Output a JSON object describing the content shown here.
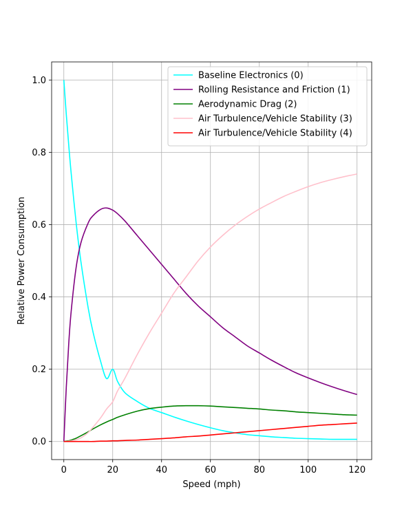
{
  "chart_data": {
    "type": "line",
    "title": "",
    "xlabel": "Speed (mph)",
    "ylabel": "Relative Power Consumption",
    "xlim": [
      -5,
      126
    ],
    "ylim": [
      -0.05,
      1.05
    ],
    "xticks": [
      0,
      20,
      40,
      60,
      80,
      100,
      120
    ],
    "xtick_labels": [
      "0",
      "20",
      "40",
      "60",
      "80",
      "100",
      "120"
    ],
    "yticks": [
      0.0,
      0.2,
      0.4,
      0.6,
      0.8,
      1.0
    ],
    "ytick_labels": [
      "0.0",
      "0.2",
      "0.4",
      "0.6",
      "0.8",
      "1.0"
    ],
    "grid": true,
    "legend_position": "upper-right",
    "x": [
      0,
      1,
      2,
      3,
      5,
      7,
      10,
      12,
      15,
      17.5,
      20,
      22,
      25,
      30,
      35,
      40,
      45,
      50,
      55,
      60,
      65,
      70,
      75,
      80,
      85,
      90,
      95,
      100,
      105,
      110,
      115,
      120
    ],
    "series": [
      {
        "name": "Baseline Electronics (0)",
        "color": "#00ffff",
        "values": [
          1.0,
          0.905,
          0.82,
          0.742,
          0.607,
          0.497,
          0.368,
          0.301,
          0.223,
          0.174,
          0.2,
          0.166,
          0.135,
          0.111,
          0.092,
          0.08,
          0.068,
          0.057,
          0.047,
          0.038,
          0.03,
          0.024,
          0.019,
          0.016,
          0.013,
          0.011,
          0.009,
          0.008,
          0.007,
          0.006,
          0.006,
          0.006
        ]
      },
      {
        "name": "Rolling Resistance and Friction (1)",
        "color": "#800080",
        "values": [
          0.0,
          0.15,
          0.27,
          0.36,
          0.48,
          0.55,
          0.605,
          0.625,
          0.642,
          0.646,
          0.64,
          0.63,
          0.61,
          0.57,
          0.53,
          0.49,
          0.45,
          0.41,
          0.375,
          0.345,
          0.315,
          0.29,
          0.265,
          0.245,
          0.225,
          0.207,
          0.19,
          0.176,
          0.163,
          0.151,
          0.14,
          0.13
        ]
      },
      {
        "name": "Aerodynamic Drag (2)",
        "color": "#008000",
        "values": [
          0.0,
          0.001,
          0.002,
          0.004,
          0.009,
          0.016,
          0.027,
          0.035,
          0.046,
          0.054,
          0.061,
          0.067,
          0.074,
          0.084,
          0.091,
          0.095,
          0.098,
          0.099,
          0.099,
          0.098,
          0.096,
          0.094,
          0.092,
          0.09,
          0.087,
          0.085,
          0.082,
          0.08,
          0.078,
          0.076,
          0.074,
          0.073
        ]
      },
      {
        "name": "Air Turbulence/Vehicle Stability (3)",
        "color": "#ffc0cb",
        "values": [
          0.0,
          0.0,
          0.001,
          0.002,
          0.005,
          0.01,
          0.025,
          0.04,
          0.065,
          0.09,
          0.11,
          0.14,
          0.175,
          0.24,
          0.3,
          0.355,
          0.41,
          0.455,
          0.5,
          0.538,
          0.57,
          0.598,
          0.622,
          0.643,
          0.661,
          0.678,
          0.692,
          0.705,
          0.716,
          0.725,
          0.733,
          0.74
        ]
      },
      {
        "name": "Air Turbulence/Vehicle Stability (4)",
        "color": "#ff0000",
        "values": [
          0.0,
          0.0,
          0.0,
          0.0,
          0.0,
          0.0,
          0.0,
          0.0,
          0.001,
          0.001,
          0.002,
          0.002,
          0.003,
          0.004,
          0.006,
          0.008,
          0.01,
          0.013,
          0.015,
          0.018,
          0.021,
          0.024,
          0.027,
          0.03,
          0.033,
          0.036,
          0.039,
          0.042,
          0.045,
          0.047,
          0.049,
          0.051
        ]
      }
    ]
  }
}
